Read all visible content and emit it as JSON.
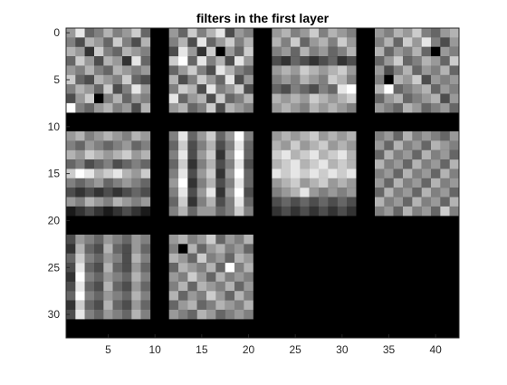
{
  "chart_data": {
    "type": "heatmap",
    "title": "filters in the first layer",
    "xlabel": "",
    "ylabel": "",
    "xlim": [
      0.5,
      42.5
    ],
    "ylim": [
      32.5,
      -0.5
    ],
    "y_reversed": true,
    "x_ticks": [
      5,
      10,
      15,
      20,
      25,
      30,
      35,
      40
    ],
    "y_ticks": [
      0,
      5,
      10,
      15,
      20,
      25,
      30
    ],
    "x_tick_labels": [
      "5",
      "10",
      "15",
      "20",
      "25",
      "30",
      "35",
      "40"
    ],
    "y_tick_labels": [
      "0",
      "5",
      "10",
      "15",
      "20",
      "25",
      "30"
    ],
    "grid": false,
    "colormap": "gray",
    "background_color": "#000000",
    "filter_size": 9,
    "padding": 2,
    "grid_rows": 3,
    "grid_cols": 4,
    "filter_count": 10,
    "filters": [
      {
        "id": 1,
        "x": [
          1,
          9
        ],
        "y": [
          0,
          8
        ],
        "values": [
          [
            0.6,
            0.9,
            0.4,
            0.5,
            0.7,
            0.5,
            0.6,
            0.8,
            0.4
          ],
          [
            0.5,
            0.3,
            0.7,
            0.6,
            0.4,
            0.8,
            0.5,
            0.3,
            0.7
          ],
          [
            0.7,
            0.6,
            0.2,
            0.8,
            0.5,
            0.4,
            0.7,
            0.6,
            0.5
          ],
          [
            0.4,
            0.8,
            0.6,
            0.3,
            0.7,
            0.6,
            0.2,
            0.9,
            0.4
          ],
          [
            0.6,
            0.5,
            0.7,
            0.5,
            0.4,
            0.7,
            0.6,
            0.5,
            0.6
          ],
          [
            0.8,
            0.4,
            0.3,
            0.7,
            0.6,
            0.5,
            0.8,
            0.4,
            0.3
          ],
          [
            0.5,
            0.7,
            0.6,
            0.4,
            0.8,
            0.3,
            0.5,
            0.9,
            0.6
          ],
          [
            0.3,
            0.6,
            0.8,
            0.0,
            0.5,
            0.7,
            0.4,
            0.6,
            0.5
          ],
          [
            1.0,
            0.5,
            0.4,
            0.6,
            0.7,
            0.5,
            0.6,
            0.3,
            0.7
          ]
        ]
      },
      {
        "id": 2,
        "x": [
          12,
          20
        ],
        "y": [
          0,
          8
        ],
        "values": [
          [
            0.6,
            0.4,
            0.8,
            0.5,
            0.7,
            0.9,
            0.3,
            0.6,
            0.5
          ],
          [
            0.5,
            0.7,
            0.3,
            0.9,
            0.4,
            0.6,
            0.8,
            0.5,
            0.7
          ],
          [
            0.3,
            0.9,
            0.6,
            0.2,
            0.8,
            0.0,
            0.6,
            0.4,
            0.8
          ],
          [
            0.8,
            1.0,
            0.4,
            0.9,
            0.5,
            0.7,
            0.3,
            0.9,
            0.6
          ],
          [
            0.4,
            0.6,
            0.8,
            0.5,
            0.3,
            0.9,
            0.7,
            0.5,
            0.4
          ],
          [
            0.7,
            0.3,
            0.5,
            0.8,
            0.6,
            0.4,
            0.9,
            0.3,
            0.6
          ],
          [
            0.5,
            0.8,
            0.7,
            0.3,
            0.9,
            0.5,
            0.6,
            0.8,
            0.3
          ],
          [
            0.9,
            0.4,
            0.6,
            0.7,
            0.3,
            0.8,
            0.4,
            0.5,
            0.7
          ],
          [
            0.6,
            0.7,
            0.4,
            0.5,
            0.8,
            0.3,
            0.7,
            0.6,
            0.5
          ]
        ]
      },
      {
        "id": 3,
        "x": [
          23,
          31
        ],
        "y": [
          0,
          8
        ],
        "values": [
          [
            0.6,
            0.7,
            0.5,
            0.6,
            0.8,
            0.5,
            0.7,
            0.6,
            0.5
          ],
          [
            0.7,
            0.5,
            0.8,
            0.4,
            0.6,
            0.7,
            0.5,
            0.8,
            0.6
          ],
          [
            0.5,
            0.6,
            0.4,
            0.7,
            0.5,
            0.6,
            0.4,
            0.5,
            0.7
          ],
          [
            0.3,
            0.2,
            0.4,
            0.3,
            0.2,
            0.3,
            0.4,
            0.2,
            0.3
          ],
          [
            0.6,
            0.7,
            0.6,
            0.8,
            0.7,
            0.6,
            0.7,
            0.8,
            0.6
          ],
          [
            0.5,
            0.6,
            0.5,
            0.7,
            0.6,
            0.5,
            0.8,
            0.7,
            0.5
          ],
          [
            0.4,
            0.3,
            0.5,
            0.4,
            0.3,
            0.5,
            0.4,
            0.9,
            1.0
          ],
          [
            0.7,
            0.6,
            0.7,
            0.6,
            0.8,
            0.7,
            0.6,
            0.7,
            0.8
          ],
          [
            0.6,
            0.7,
            0.6,
            0.5,
            0.7,
            0.6,
            0.7,
            0.6,
            0.5
          ]
        ]
      },
      {
        "id": 4,
        "x": [
          34,
          42
        ],
        "y": [
          0,
          8
        ],
        "values": [
          [
            0.6,
            0.5,
            0.7,
            0.6,
            0.8,
            0.5,
            0.4,
            0.6,
            0.7
          ],
          [
            0.5,
            0.7,
            0.4,
            0.8,
            0.6,
            0.9,
            0.5,
            0.3,
            0.6
          ],
          [
            0.7,
            0.4,
            0.6,
            0.5,
            0.7,
            0.4,
            0.0,
            0.6,
            0.5
          ],
          [
            0.4,
            0.6,
            0.8,
            0.4,
            0.5,
            0.7,
            0.6,
            0.4,
            0.8
          ],
          [
            0.6,
            0.3,
            0.5,
            0.7,
            0.4,
            0.6,
            0.5,
            0.7,
            0.4
          ],
          [
            0.5,
            0.0,
            0.7,
            0.6,
            0.8,
            0.3,
            0.6,
            0.5,
            0.6
          ],
          [
            0.7,
            1.0,
            0.4,
            0.5,
            0.6,
            0.7,
            0.4,
            0.6,
            0.5
          ],
          [
            0.4,
            0.6,
            0.7,
            0.4,
            0.5,
            0.6,
            0.7,
            0.3,
            0.6
          ],
          [
            0.6,
            0.5,
            0.4,
            0.7,
            0.6,
            0.4,
            0.5,
            0.6,
            0.4
          ]
        ]
      },
      {
        "id": 5,
        "x": [
          1,
          9
        ],
        "y": [
          11,
          19
        ],
        "values": [
          [
            0.6,
            0.7,
            0.5,
            0.6,
            0.7,
            0.6,
            0.5,
            0.7,
            0.6
          ],
          [
            0.5,
            0.4,
            0.6,
            0.5,
            0.4,
            0.5,
            0.6,
            0.4,
            0.5
          ],
          [
            0.7,
            0.6,
            0.8,
            0.7,
            0.6,
            0.7,
            0.8,
            0.6,
            0.7
          ],
          [
            0.4,
            0.5,
            0.3,
            0.4,
            0.5,
            0.3,
            0.4,
            0.5,
            0.4
          ],
          [
            0.8,
            1.0,
            0.9,
            0.7,
            0.8,
            0.9,
            0.7,
            0.6,
            0.8
          ],
          [
            0.5,
            0.4,
            0.5,
            0.6,
            0.4,
            0.5,
            0.6,
            0.5,
            0.4
          ],
          [
            0.3,
            0.2,
            0.3,
            0.2,
            0.3,
            0.2,
            0.3,
            0.4,
            0.3
          ],
          [
            0.6,
            0.5,
            0.7,
            0.6,
            0.5,
            0.7,
            0.6,
            0.5,
            0.6
          ],
          [
            0.1,
            0.2,
            0.3,
            0.2,
            0.1,
            0.2,
            0.3,
            0.2,
            0.1
          ]
        ]
      },
      {
        "id": 6,
        "x": [
          12,
          20
        ],
        "y": [
          11,
          19
        ],
        "values": [
          [
            0.5,
            0.9,
            0.4,
            0.6,
            0.8,
            0.4,
            0.6,
            1.0,
            0.5
          ],
          [
            0.4,
            0.8,
            0.3,
            0.5,
            0.7,
            0.3,
            0.5,
            0.9,
            0.4
          ],
          [
            0.5,
            0.9,
            0.3,
            0.6,
            0.8,
            0.2,
            0.6,
            1.0,
            0.4
          ],
          [
            0.4,
            0.8,
            0.2,
            0.5,
            0.7,
            0.3,
            0.5,
            0.9,
            0.3
          ],
          [
            0.5,
            0.9,
            0.3,
            0.6,
            0.8,
            0.2,
            0.6,
            1.0,
            0.4
          ],
          [
            0.6,
            1.0,
            0.2,
            0.5,
            0.7,
            0.3,
            0.5,
            0.9,
            0.4
          ],
          [
            0.5,
            0.9,
            0.3,
            0.6,
            0.9,
            0.2,
            0.6,
            1.0,
            0.3
          ],
          [
            0.4,
            0.8,
            0.2,
            0.5,
            0.7,
            0.3,
            0.5,
            0.9,
            0.4
          ],
          [
            0.5,
            0.7,
            0.4,
            0.6,
            0.6,
            0.4,
            0.5,
            0.8,
            0.5
          ]
        ]
      },
      {
        "id": 7,
        "x": [
          23,
          31
        ],
        "y": [
          11,
          19
        ],
        "values": [
          [
            0.6,
            0.7,
            0.6,
            0.7,
            0.8,
            0.6,
            0.7,
            0.6,
            0.7
          ],
          [
            0.7,
            0.6,
            0.8,
            0.6,
            0.7,
            0.8,
            0.6,
            0.7,
            0.6
          ],
          [
            0.8,
            0.9,
            0.7,
            0.8,
            0.9,
            0.7,
            0.8,
            0.9,
            0.7
          ],
          [
            0.7,
            0.8,
            0.9,
            0.7,
            0.8,
            0.9,
            0.7,
            0.8,
            0.7
          ],
          [
            0.9,
            0.8,
            0.9,
            0.8,
            0.9,
            0.8,
            0.9,
            0.8,
            0.9
          ],
          [
            0.6,
            0.7,
            0.8,
            0.6,
            0.7,
            0.8,
            0.6,
            0.7,
            0.6
          ],
          [
            0.5,
            0.6,
            0.7,
            0.9,
            0.6,
            0.5,
            0.6,
            0.5,
            0.6
          ],
          [
            0.3,
            0.4,
            0.3,
            0.4,
            0.3,
            0.4,
            0.3,
            0.4,
            0.3
          ],
          [
            0.2,
            0.3,
            0.2,
            0.3,
            0.2,
            0.3,
            0.2,
            0.3,
            0.2
          ]
        ]
      },
      {
        "id": 8,
        "x": [
          34,
          42
        ],
        "y": [
          11,
          19
        ],
        "values": [
          [
            0.5,
            0.6,
            0.4,
            0.7,
            0.5,
            0.6,
            0.5,
            0.4,
            0.6
          ],
          [
            0.6,
            0.4,
            0.7,
            0.5,
            0.6,
            0.4,
            0.7,
            0.6,
            0.5
          ],
          [
            0.4,
            0.7,
            0.5,
            0.6,
            0.4,
            0.7,
            0.5,
            0.6,
            0.4
          ],
          [
            0.7,
            0.5,
            0.6,
            0.4,
            0.7,
            0.5,
            0.6,
            0.4,
            0.7
          ],
          [
            0.5,
            0.6,
            0.4,
            0.7,
            0.5,
            0.6,
            0.4,
            0.7,
            0.5
          ],
          [
            0.6,
            0.4,
            0.7,
            0.5,
            0.6,
            0.4,
            0.7,
            0.5,
            0.6
          ],
          [
            0.4,
            0.7,
            0.5,
            0.6,
            0.4,
            0.7,
            0.5,
            0.6,
            0.4
          ],
          [
            0.7,
            0.5,
            0.6,
            0.4,
            0.7,
            0.5,
            0.6,
            0.4,
            0.7
          ],
          [
            0.5,
            0.6,
            0.4,
            0.7,
            0.5,
            0.6,
            0.4,
            0.8,
            0.5
          ]
        ]
      },
      {
        "id": 9,
        "x": [
          1,
          9
        ],
        "y": [
          22,
          30
        ],
        "values": [
          [
            0.3,
            0.6,
            0.5,
            0.4,
            0.6,
            0.5,
            0.4,
            0.6,
            0.5
          ],
          [
            0.2,
            0.7,
            0.4,
            0.3,
            0.7,
            0.4,
            0.3,
            0.6,
            0.4
          ],
          [
            0.4,
            0.8,
            0.5,
            0.4,
            0.6,
            0.5,
            0.3,
            0.7,
            0.5
          ],
          [
            0.3,
            0.9,
            0.4,
            0.3,
            0.7,
            0.4,
            0.3,
            0.6,
            0.4
          ],
          [
            0.2,
            1.0,
            0.5,
            0.4,
            0.6,
            0.5,
            0.4,
            0.7,
            0.5
          ],
          [
            0.3,
            0.9,
            0.4,
            0.3,
            0.7,
            0.4,
            0.3,
            0.6,
            0.4
          ],
          [
            0.4,
            1.0,
            0.5,
            0.4,
            0.6,
            0.5,
            0.4,
            0.7,
            0.5
          ],
          [
            0.2,
            0.8,
            0.4,
            0.3,
            0.7,
            0.4,
            0.3,
            0.6,
            0.4
          ],
          [
            0.3,
            0.9,
            0.5,
            0.4,
            0.6,
            0.5,
            0.4,
            0.7,
            0.5
          ]
        ]
      },
      {
        "id": 10,
        "x": [
          12,
          20
        ],
        "y": [
          22,
          30
        ],
        "values": [
          [
            0.6,
            0.7,
            0.5,
            0.6,
            0.8,
            0.4,
            0.6,
            0.5,
            0.7
          ],
          [
            0.5,
            0.0,
            0.7,
            0.4,
            0.6,
            0.7,
            0.5,
            0.6,
            0.4
          ],
          [
            0.7,
            0.6,
            0.4,
            0.8,
            0.5,
            0.6,
            0.4,
            0.7,
            0.6
          ],
          [
            0.4,
            0.7,
            0.6,
            0.5,
            0.7,
            0.4,
            1.0,
            0.5,
            0.7
          ],
          [
            0.6,
            0.5,
            0.8,
            0.6,
            0.4,
            0.7,
            0.5,
            0.6,
            0.5
          ],
          [
            0.5,
            0.7,
            0.4,
            0.7,
            0.6,
            0.5,
            0.7,
            0.4,
            0.6
          ],
          [
            0.7,
            0.4,
            0.6,
            0.5,
            0.8,
            0.6,
            0.4,
            0.7,
            0.5
          ],
          [
            0.4,
            0.6,
            0.7,
            0.4,
            0.5,
            0.7,
            0.6,
            0.5,
            0.7
          ],
          [
            0.6,
            0.5,
            0.4,
            0.7,
            0.6,
            0.4,
            0.5,
            0.6,
            0.5
          ]
        ]
      }
    ]
  }
}
